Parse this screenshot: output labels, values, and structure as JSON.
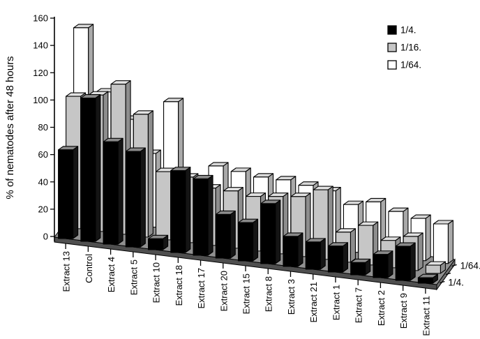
{
  "chart_data": {
    "type": "bar",
    "subtype": "3d-column",
    "title": "",
    "ylabel": "% of nematodes after 48 hours",
    "xlabel": "",
    "ylim": [
      0,
      160
    ],
    "y_ticks": [
      0,
      20,
      40,
      60,
      80,
      100,
      120,
      140,
      160
    ],
    "grid": false,
    "legend_position": "top-right",
    "categories": [
      "Extract 13",
      "Control",
      "Extract 4",
      "Extract 5",
      "Extract 10",
      "Extract 18",
      "Extract 17",
      "Extract 20",
      "Extract 15",
      "Extract 8",
      "Extract 3",
      "Extract 21",
      "Extract 1",
      "Extract 7",
      "Extract 2",
      "Extract 9",
      "Extract 11"
    ],
    "series": [
      {
        "name": "1/4.",
        "front_color": "#000000",
        "top_color": "#8a8a8a",
        "side_color": "#151515",
        "values": [
          65,
          105,
          75,
          70,
          8,
          60,
          56,
          32,
          28,
          44,
          22,
          20,
          19,
          9,
          17,
          25,
          4
        ]
      },
      {
        "name": "1/16.",
        "front_color": "#c6c6c6",
        "top_color": "#e2e2e2",
        "side_color": "#8d8d8d",
        "values": [
          97,
          100,
          110,
          90,
          50,
          48,
          42,
          42,
          40,
          42,
          44,
          51,
          22,
          29,
          20,
          25,
          6
        ]
      },
      {
        "name": "1/64.",
        "front_color": "#ffffff",
        "top_color": "#d8d8d8",
        "side_color": "#a9a9a9",
        "values": [
          140,
          95,
          77,
          54,
          94,
          33,
          51,
          49,
          47,
          47,
          45,
          43,
          35,
          39,
          34,
          31,
          29
        ]
      }
    ],
    "depth_axis": {
      "labels_shown": [
        "1/64.",
        "1/4."
      ]
    },
    "floor_color": "#909090",
    "floor_front_color": "#4f4f4f",
    "floor_side_color": "#6e6e6e",
    "axis_color": "#000000"
  }
}
